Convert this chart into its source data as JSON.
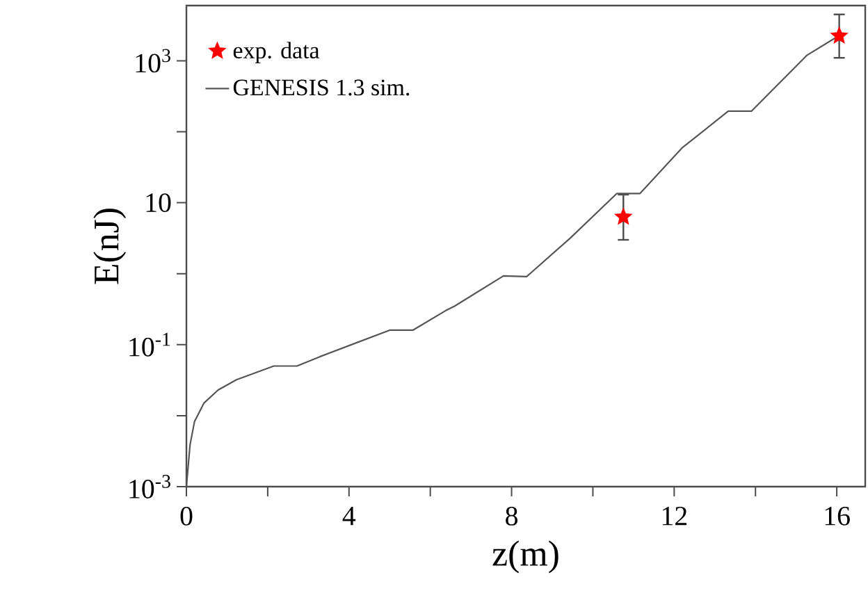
{
  "chart_data": {
    "type": "line",
    "xlabel": "z(m)",
    "ylabel": "E(nJ)",
    "log": "y",
    "xlim": [
      0,
      16.7
    ],
    "ylim": [
      0.001,
      6000
    ],
    "xticks": [
      0,
      {
        "value": 2,
        "label": null
      },
      4,
      {
        "value": 6,
        "label": null
      },
      8,
      {
        "value": 10,
        "label": null
      },
      12,
      {
        "value": 14,
        "label": null
      },
      16
    ],
    "yticks": [
      {
        "value": 0.001,
        "label": "10$^{-3}$"
      },
      {
        "value": 0.01,
        "label": null
      },
      {
        "value": 0.1,
        "label": "10$^{-1}$"
      },
      {
        "value": 1,
        "label": null
      },
      10,
      {
        "value": 100,
        "label": null
      },
      {
        "value": 1000,
        "label": "10$^{3}$"
      }
    ],
    "grid": false,
    "legend": "top left",
    "series": [
      {
        "name": "exp. data",
        "type": "scatter",
        "marker": "star",
        "color": "#ff0000",
        "x": [
          10.75,
          16.06
        ],
        "values": [
          6.3,
          2240
        ],
        "errors": [
          [
            3,
            13
          ],
          [
            1100,
            4500
          ]
        ]
      },
      {
        "name": "GENESIS 1.3 sim.",
        "type": "line",
        "marker": "none",
        "line_style": "solid",
        "color": "#555555",
        "x": [
          0,
          0.09,
          0.2,
          0.43,
          0.78,
          1.23,
          2.15,
          2.72,
          3.29,
          5.0,
          5.57,
          6.37,
          6.6,
          7.8,
          8.37,
          9.45,
          10.59,
          11.16,
          12.19,
          13.33,
          13.9,
          15.27,
          16.02
        ],
        "values": [
          0.001,
          0.0039,
          0.0083,
          0.015,
          0.023,
          0.032,
          0.05,
          0.05,
          0.068,
          0.16,
          0.16,
          0.3,
          0.35,
          0.93,
          0.91,
          3.2,
          13.5,
          13.5,
          59,
          195,
          195,
          1200,
          2200
        ]
      }
    ]
  }
}
